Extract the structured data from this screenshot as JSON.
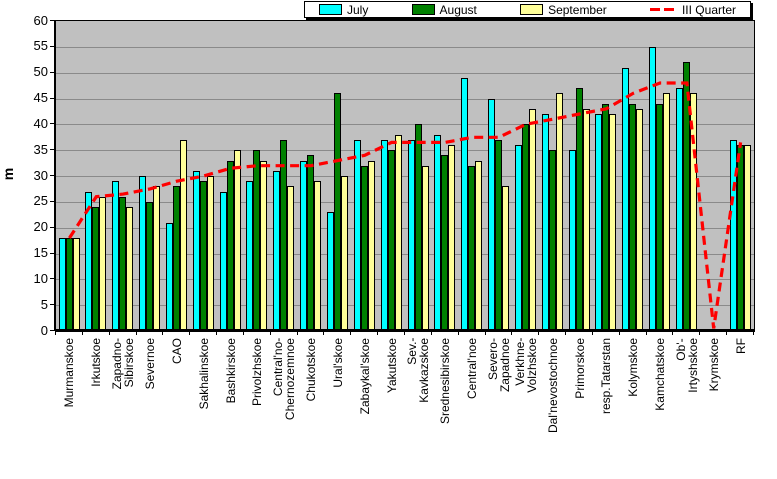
{
  "chart_data": {
    "type": "bar",
    "title": "",
    "xlabel": "",
    "ylabel": "m",
    "ylim": [
      0,
      60
    ],
    "ytick_step": 5,
    "yticks": [
      0,
      5,
      10,
      15,
      20,
      25,
      30,
      35,
      40,
      45,
      50,
      55,
      60
    ],
    "grid": true,
    "plot_bg_color": "#C0C0C0",
    "gridline_color": "#8a8a8a",
    "legend_position": "top-center",
    "categories": [
      "Murmanskoe",
      "Irkutskoe",
      "Zapadno-\nSibirskoe",
      "Severnoe",
      "CAO",
      "Sakhalinskoe",
      "Bashkirskoe",
      "Privolzhskoe",
      "Central'no-\nChernozemnoe",
      "Chukotskoe",
      "Ural'skoe",
      "Zabaykal'skoe",
      "Yakutskoe",
      "Sev.-\nKavkazskoe",
      "Srednesibirskoe",
      "Central'noe",
      "Severo-\nZapadnoe",
      "Verkhne-\nVolzhskoe",
      "Dal'nevostochnoe",
      "Primorskoe",
      "resp.Tatarstan",
      "Kolymskoe",
      "Kamchatskoe",
      "Ob'-\nIrtyshskoe",
      "Krymskoe",
      "RF"
    ],
    "series": [
      {
        "name": "July",
        "type": "bar",
        "color": "#00FFFF",
        "values": [
          18,
          27,
          29,
          30,
          21,
          31,
          27,
          29,
          31,
          33,
          23,
          37,
          37,
          37,
          38,
          49,
          45,
          36,
          42,
          35,
          42,
          51,
          55,
          47,
          0,
          37
        ]
      },
      {
        "name": "August",
        "type": "bar",
        "color": "#008000",
        "values": [
          18,
          24,
          26,
          25,
          28,
          29,
          33,
          35,
          37,
          34,
          46,
          32,
          35,
          40,
          34,
          32,
          37,
          40,
          35,
          47,
          44,
          44,
          44,
          52,
          0,
          36
        ]
      },
      {
        "name": "September",
        "type": "bar",
        "color": "#FFFF99",
        "values": [
          18,
          26,
          24,
          28,
          37,
          30,
          35,
          33,
          28,
          29,
          30,
          33,
          38,
          32,
          36,
          33,
          28,
          43,
          46,
          43,
          42,
          43,
          46,
          46,
          0,
          36
        ]
      },
      {
        "name": "III Quarter",
        "type": "line",
        "color": "#FF0000",
        "dashed": true,
        "values": [
          18,
          26,
          26.5,
          27.5,
          29,
          30,
          31.5,
          32,
          32,
          32,
          33,
          34,
          36.5,
          36.5,
          36.5,
          37.5,
          37.5,
          40,
          41,
          42,
          43,
          46,
          48,
          48,
          0.5,
          36.5
        ]
      }
    ]
  },
  "legend": {
    "items": [
      {
        "label": "July",
        "marker": "box",
        "color": "#00FFFF"
      },
      {
        "label": "August",
        "marker": "box",
        "color": "#008000"
      },
      {
        "label": "September",
        "marker": "box",
        "color": "#FFFF99"
      },
      {
        "label": "III Quarter",
        "marker": "dash",
        "color": "#FF0000"
      }
    ]
  },
  "axis": {
    "y_title": "m"
  }
}
